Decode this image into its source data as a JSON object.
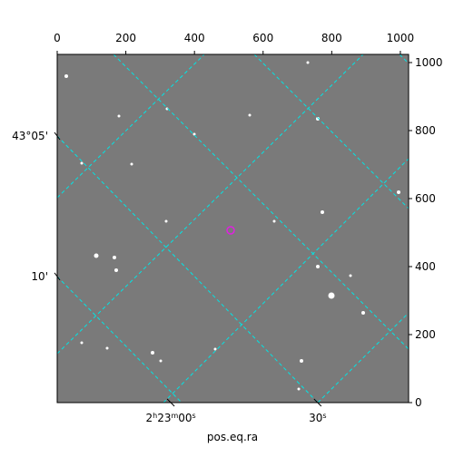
{
  "chart_data": {
    "type": "image",
    "xlim": [
      0,
      1024
    ],
    "ylim": [
      0,
      1024
    ],
    "xticks": [
      0,
      200,
      400,
      600,
      800,
      1000
    ],
    "yticks": [
      0,
      200,
      400,
      600,
      800,
      1000
    ],
    "ra_ticks": [
      {
        "value": 331,
        "label": "2h23m00s"
      },
      {
        "value": 759,
        "label": "30s"
      }
    ],
    "dec_ticks": [
      {
        "value": 784,
        "label": "43°05'"
      },
      {
        "value": 371,
        "label": "10'"
      }
    ],
    "xlabel": "pos.eq.ra"
  }
}
